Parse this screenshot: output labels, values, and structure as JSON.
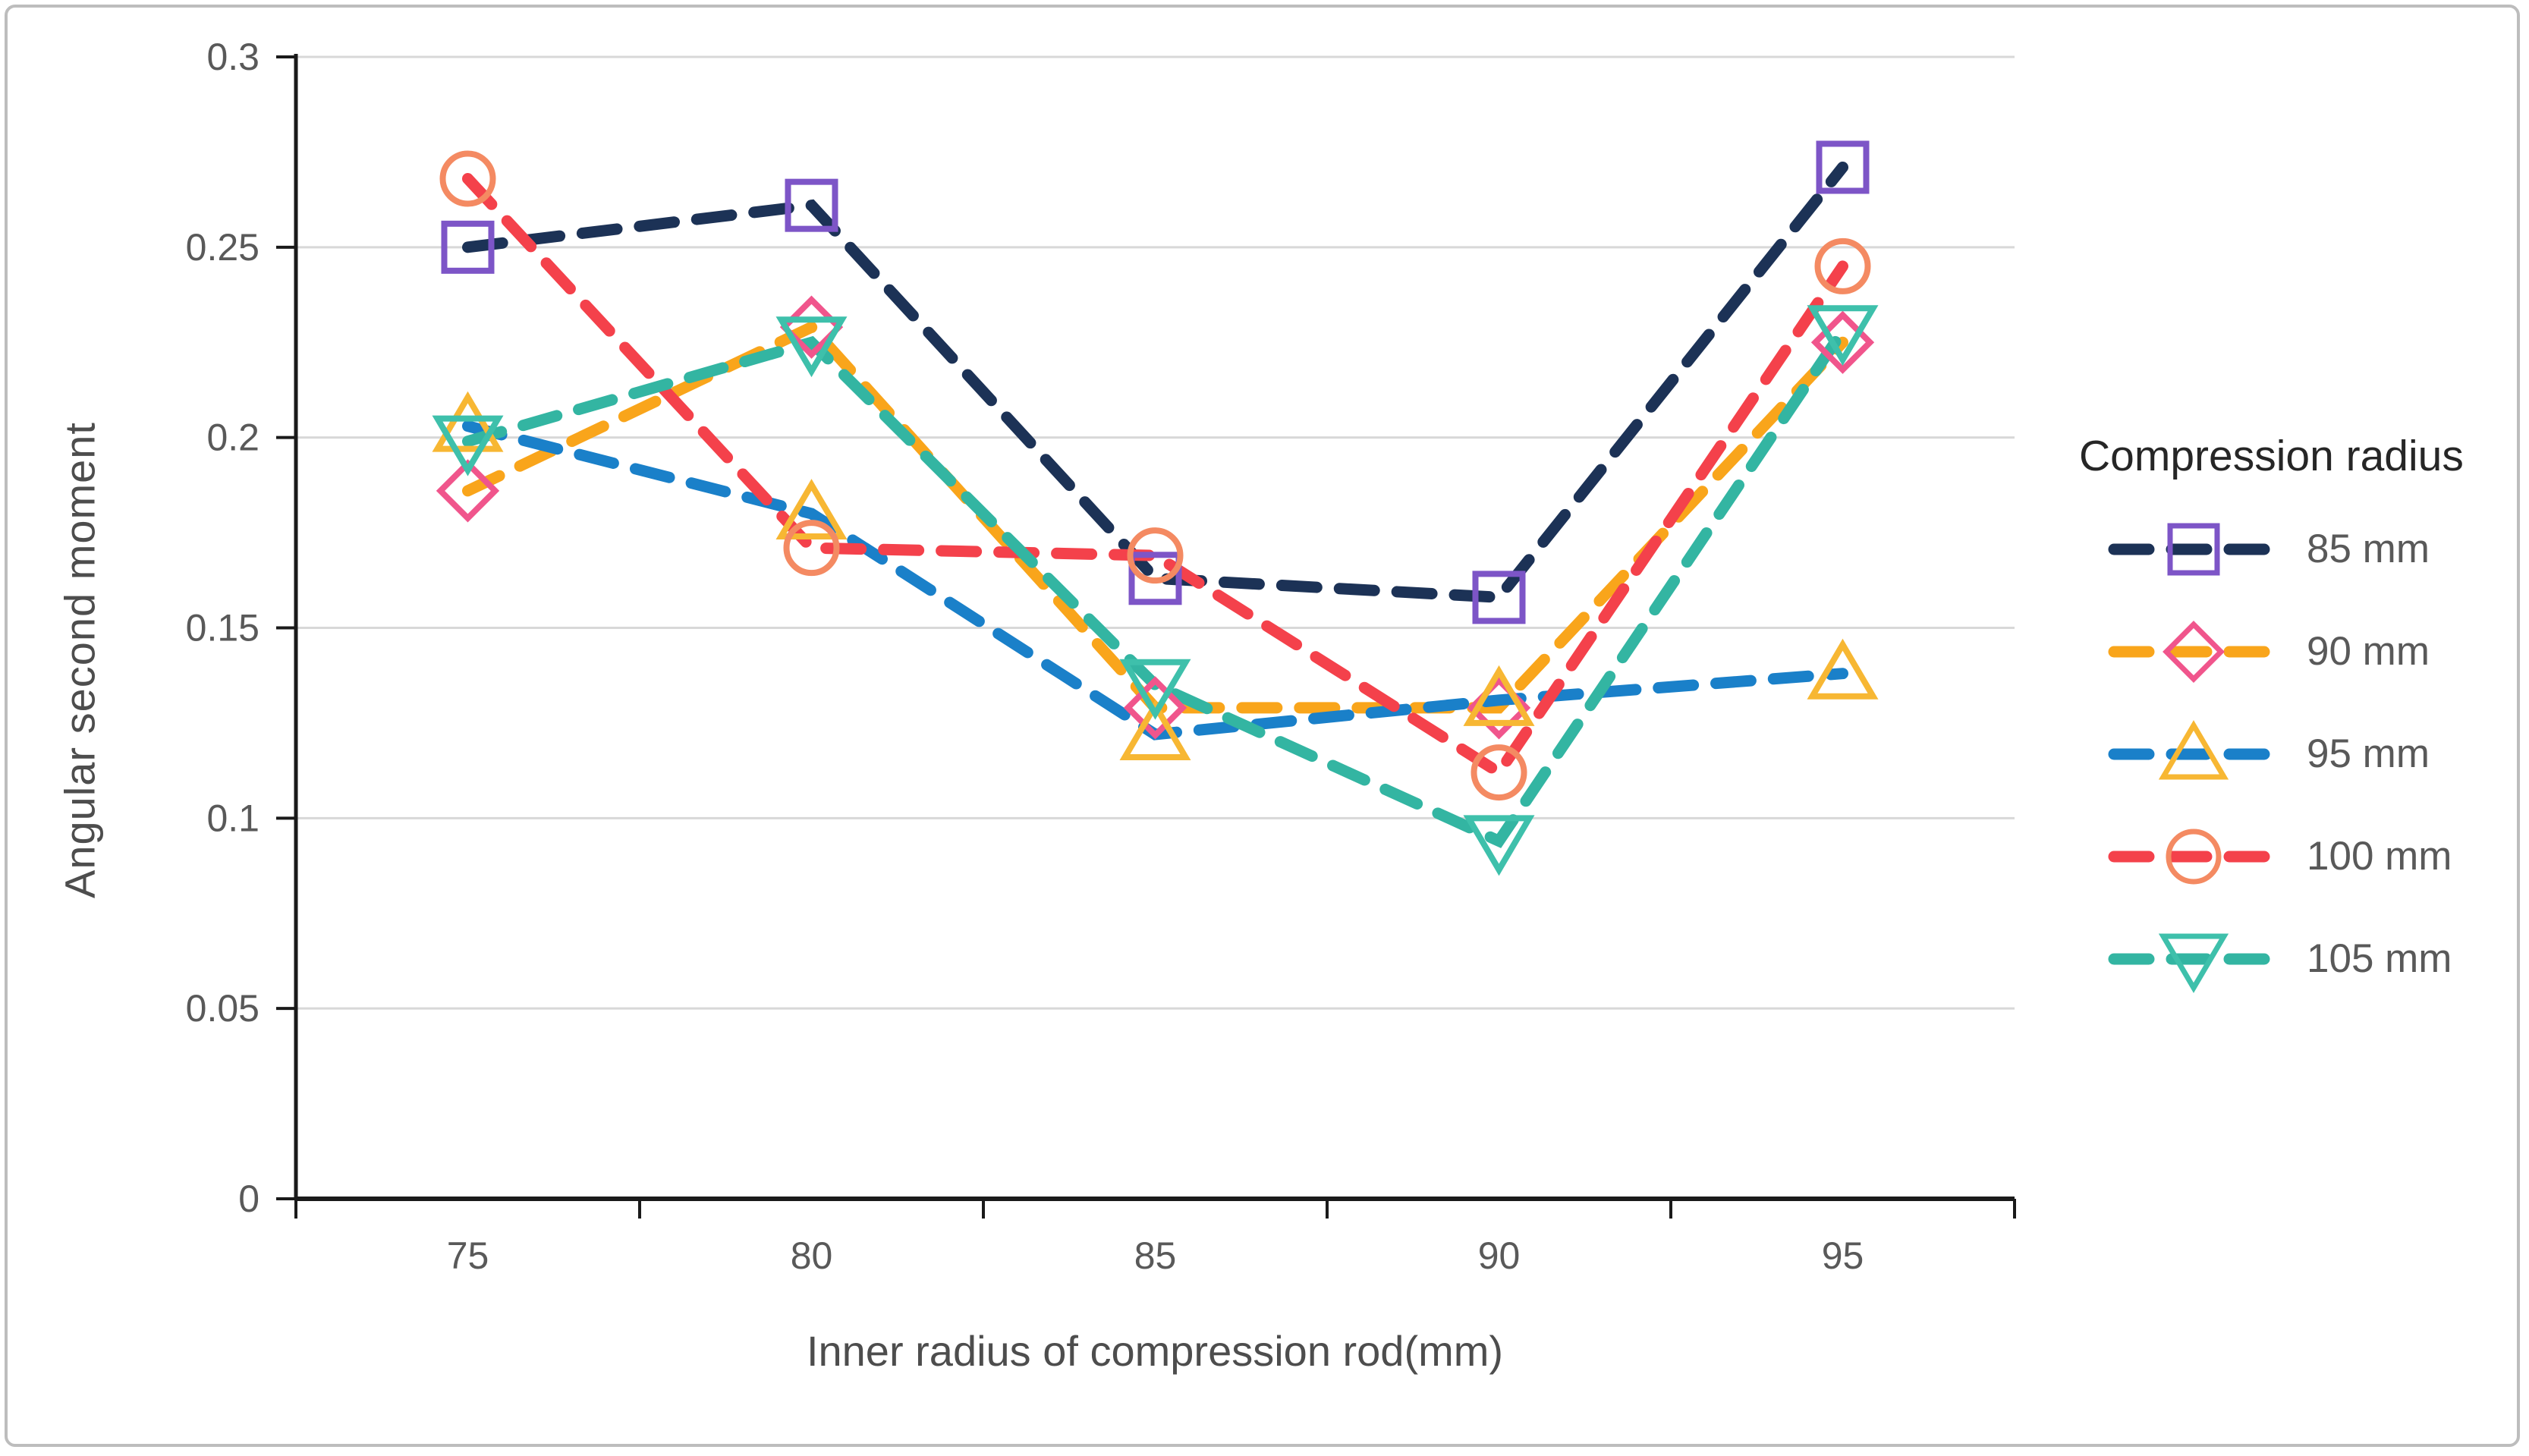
{
  "figure": {
    "border_color": "#bdbdbd",
    "background": "#ffffff"
  },
  "colors": {
    "gridline": "#d8d8d8",
    "axis_line": "#1a1a1a",
    "tick_label": "#595959",
    "axis_title": "#4d4d4d",
    "legend_title": "#262626",
    "legend_label": "#595959"
  },
  "chart_data": {
    "type": "line",
    "title": "",
    "xlabel": "Inner radius of compression rod(mm)",
    "ylabel": "Angular second moment",
    "categories": [
      75,
      80,
      85,
      90,
      95
    ],
    "x_tick_labels": [
      "75",
      "80",
      "85",
      "90",
      "95"
    ],
    "y_ticks": [
      0,
      0.05,
      0.1,
      0.15,
      0.2,
      0.25,
      0.3
    ],
    "y_tick_labels": [
      "0",
      "0.05",
      "0.1",
      "0.15",
      "0.2",
      "0.25",
      "0.3"
    ],
    "ylim": [
      0,
      0.3
    ],
    "grid": true,
    "line_style": "dashed",
    "legend_position": "right",
    "legend_title": "Compression radius",
    "series": [
      {
        "name": "85 mm",
        "values": [
          0.25,
          0.261,
          0.163,
          0.158,
          0.271
        ],
        "line_color": "#1c3256",
        "marker": "square",
        "marker_color": "#7d55c7"
      },
      {
        "name": "90 mm",
        "values": [
          0.186,
          0.229,
          0.129,
          0.129,
          0.225
        ],
        "line_color": "#f9a51b",
        "marker": "diamond",
        "marker_color": "#f0558c"
      },
      {
        "name": "95 mm",
        "values": [
          0.203,
          0.18,
          0.122,
          0.131,
          0.138
        ],
        "line_color": "#1a80c9",
        "marker": "triangle-up",
        "marker_color": "#f7b733"
      },
      {
        "name": "100 mm",
        "values": [
          0.268,
          0.171,
          0.169,
          0.112,
          0.245
        ],
        "line_color": "#f4414b",
        "marker": "circle",
        "marker_color": "#f48a62"
      },
      {
        "name": "105 mm",
        "values": [
          0.199,
          0.225,
          0.135,
          0.094,
          0.228
        ],
        "line_color": "#33b5a2",
        "marker": "triangle-down",
        "marker_color": "#3ec0ab"
      }
    ]
  }
}
